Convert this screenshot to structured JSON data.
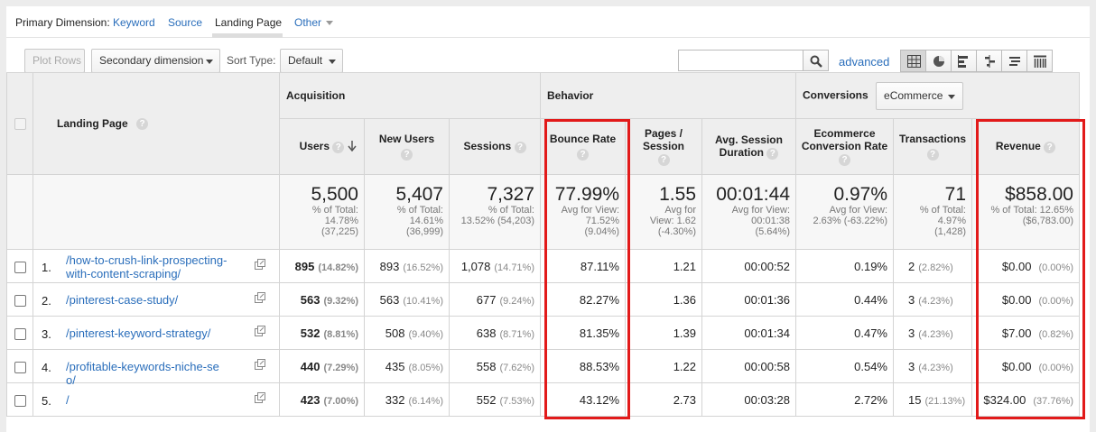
{
  "primary_dimension": {
    "label": "Primary Dimension:",
    "options": [
      "Keyword",
      "Source",
      "Landing Page",
      "Other"
    ]
  },
  "toolbar": {
    "plot_rows": "Plot Rows",
    "secondary_dimension": "Secondary dimension",
    "sort_type_label": "Sort Type:",
    "sort_type_value": "Default",
    "search_value": "",
    "advanced": "advanced"
  },
  "conversions": {
    "label": "Conversions",
    "value": "eCommerce"
  },
  "groups": {
    "acquisition": "Acquisition",
    "behavior": "Behavior"
  },
  "columns": {
    "landing_page": "Landing Page",
    "users": "Users",
    "new_users": "New Users",
    "sessions": "Sessions",
    "bounce_rate": "Bounce Rate",
    "pages_session": "Pages / Session",
    "avg_session_duration": "Avg. Session Duration",
    "ecommerce_conversion_rate": "Ecommerce Conversion Rate",
    "transactions": "Transactions",
    "revenue": "Revenue"
  },
  "totals": {
    "users": {
      "value": "5,500",
      "l1": "% of Total:",
      "l2": "14.78%",
      "l3": "(37,225)"
    },
    "new_users": {
      "value": "5,407",
      "l1": "% of Total:",
      "l2": "14.61%",
      "l3": "(36,999)"
    },
    "sessions": {
      "value": "7,327",
      "l1": "% of Total:",
      "l2": "13.52% (54,203)",
      "l3": ""
    },
    "bounce_rate": {
      "value": "77.99%",
      "l1": "Avg for View:",
      "l2": "71.52%",
      "l3": "(9.04%)"
    },
    "pages_session": {
      "value": "1.55",
      "l1": "Avg for",
      "l2": "View: 1.62",
      "l3": "(-4.30%)"
    },
    "avg_session_duration": {
      "value": "00:01:44",
      "l1": "Avg for View:",
      "l2": "00:01:38",
      "l3": "(5.64%)"
    },
    "ecommerce_conversion_rate": {
      "value": "0.97%",
      "l1": "Avg for View:",
      "l2": "2.63% (-63.22%)",
      "l3": ""
    },
    "transactions": {
      "value": "71",
      "l1": "% of Total:",
      "l2": "4.97%",
      "l3": "(1,428)"
    },
    "revenue": {
      "value": "$858.00",
      "l1": "% of Total: 12.65%",
      "l2": "($6,783.00)",
      "l3": ""
    }
  },
  "rows": [
    {
      "num": "1.",
      "page": "/how-to-crush-link-prospecting-with-content-scraping/",
      "users": "895",
      "users_pct": "(14.82%)",
      "new_users": "893",
      "new_users_pct": "(16.52%)",
      "sessions": "1,078",
      "sessions_pct": "(14.71%)",
      "bounce_rate": "87.11%",
      "pages_session": "1.21",
      "duration": "00:00:52",
      "conv_rate": "0.19%",
      "transactions": "2",
      "transactions_pct": "(2.82%)",
      "revenue": "$0.00",
      "revenue_pct": "(0.00%)"
    },
    {
      "num": "2.",
      "page": "/pinterest-case-study/",
      "users": "563",
      "users_pct": "(9.32%)",
      "new_users": "563",
      "new_users_pct": "(10.41%)",
      "sessions": "677",
      "sessions_pct": "(9.24%)",
      "bounce_rate": "82.27%",
      "pages_session": "1.36",
      "duration": "00:01:36",
      "conv_rate": "0.44%",
      "transactions": "3",
      "transactions_pct": "(4.23%)",
      "revenue": "$0.00",
      "revenue_pct": "(0.00%)"
    },
    {
      "num": "3.",
      "page": "/pinterest-keyword-strategy/",
      "users": "532",
      "users_pct": "(8.81%)",
      "new_users": "508",
      "new_users_pct": "(9.40%)",
      "sessions": "638",
      "sessions_pct": "(8.71%)",
      "bounce_rate": "81.35%",
      "pages_session": "1.39",
      "duration": "00:01:34",
      "conv_rate": "0.47%",
      "transactions": "3",
      "transactions_pct": "(4.23%)",
      "revenue": "$7.00",
      "revenue_pct": "(0.82%)"
    },
    {
      "num": "4.",
      "page": "/profitable-keywords-niche-seo/",
      "users": "440",
      "users_pct": "(7.29%)",
      "new_users": "435",
      "new_users_pct": "(8.05%)",
      "sessions": "558",
      "sessions_pct": "(7.62%)",
      "bounce_rate": "88.53%",
      "pages_session": "1.22",
      "duration": "00:00:58",
      "conv_rate": "0.54%",
      "transactions": "3",
      "transactions_pct": "(4.23%)",
      "revenue": "$0.00",
      "revenue_pct": "(0.00%)"
    },
    {
      "num": "5.",
      "page": "/",
      "users": "423",
      "users_pct": "(7.00%)",
      "new_users": "332",
      "new_users_pct": "(6.14%)",
      "sessions": "552",
      "sessions_pct": "(7.53%)",
      "bounce_rate": "43.12%",
      "pages_session": "2.73",
      "duration": "00:03:28",
      "conv_rate": "2.72%",
      "transactions": "15",
      "transactions_pct": "(21.13%)",
      "revenue": "$324.00",
      "revenue_pct": "(37.76%)"
    }
  ],
  "help_glyph": "?",
  "highlight_color": "#e21a1a"
}
